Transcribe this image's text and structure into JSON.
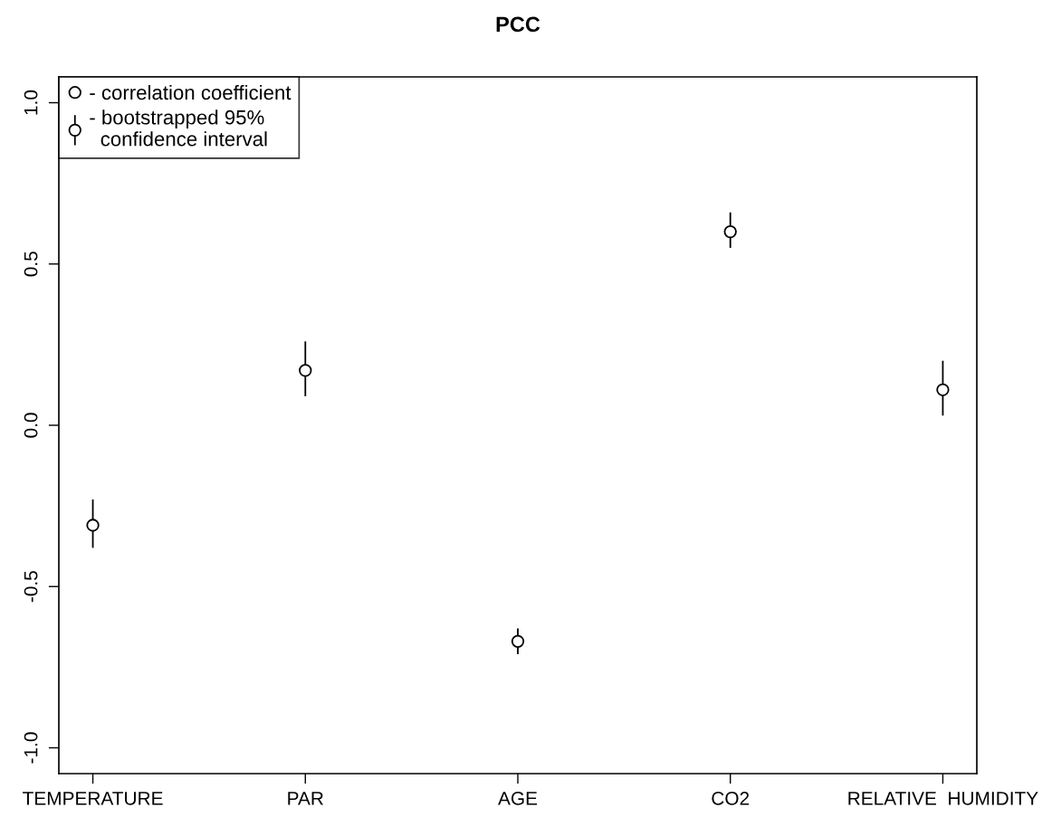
{
  "chart_data": {
    "type": "scatter",
    "title": "PCC",
    "categories": [
      "TEMPERATURE",
      "PAR",
      "AGE",
      "CO2",
      "RELATIVE  HUMIDITY"
    ],
    "series": [
      {
        "name": "- correlation coefficient",
        "color": "#000000",
        "values": [
          -0.31,
          0.17,
          -0.67,
          0.6,
          0.11
        ],
        "errors": [
          [
            -0.38,
            -0.23
          ],
          [
            0.09,
            0.26
          ],
          [
            -0.71,
            -0.63
          ],
          [
            0.55,
            0.66
          ],
          [
            0.03,
            0.2
          ]
        ]
      }
    ],
    "annotations": [
      "- bootstrapped 95%\n  confidence interval"
    ],
    "ylim": [
      -1.08,
      1.08
    ],
    "yticks": [
      {
        "value": -1.0,
        "label": "-1.0"
      },
      {
        "value": -0.5,
        "label": "-0.5"
      },
      {
        "value": 0.0,
        "label": "0.0"
      },
      {
        "value": 0.5,
        "label": "0.5"
      },
      {
        "value": 1.0,
        "label": "1.0"
      }
    ],
    "marker": "circle",
    "legend": "top left",
    "grid": false
  }
}
